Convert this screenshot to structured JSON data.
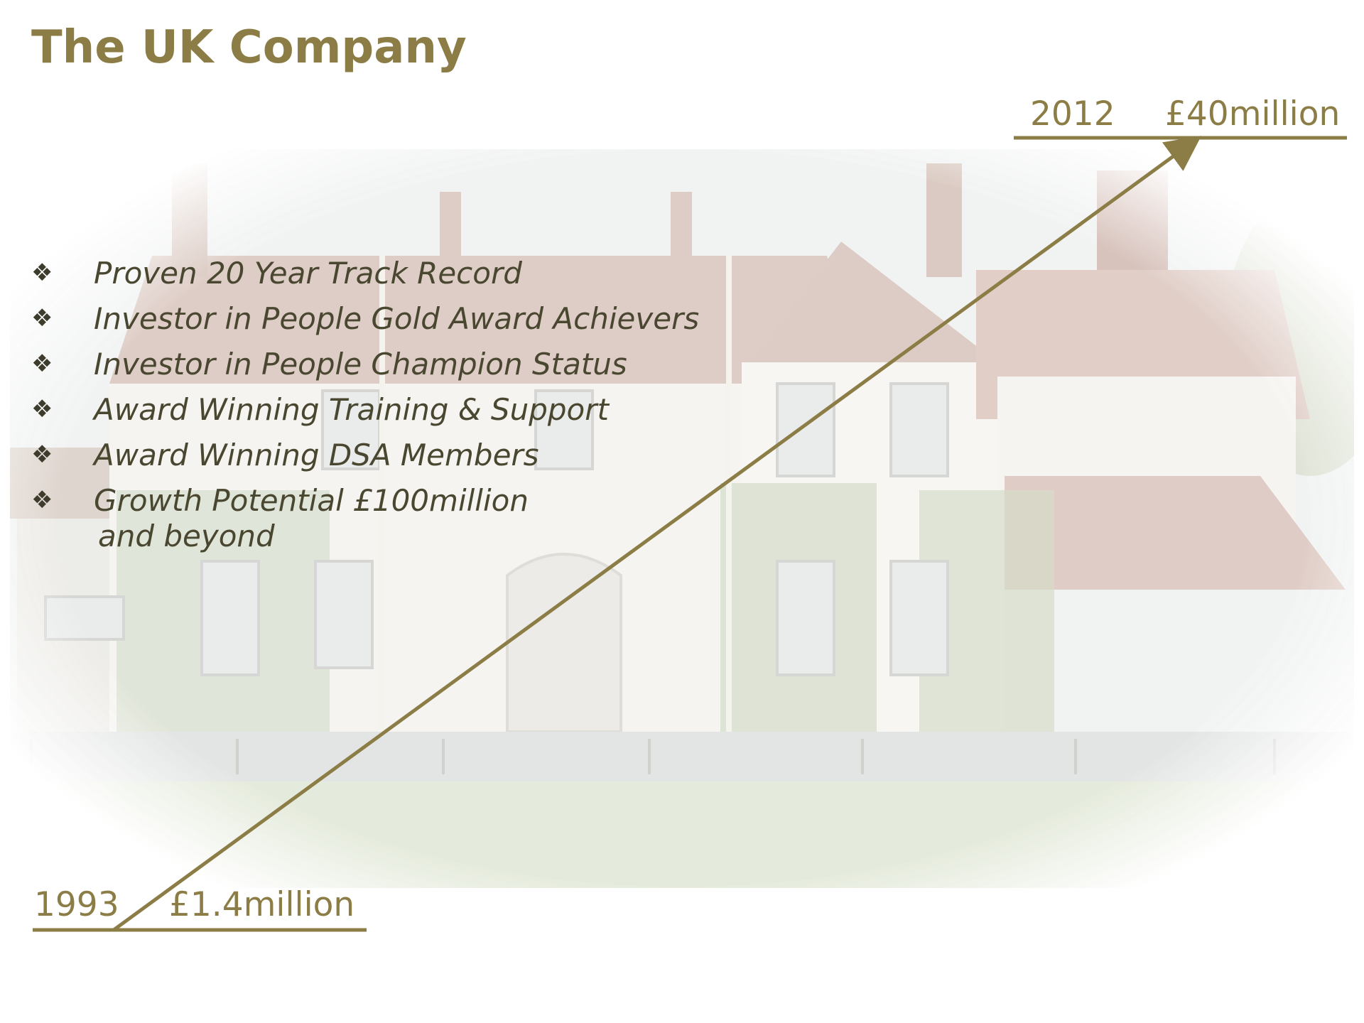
{
  "slide": {
    "title": "The UK Company"
  },
  "bullets": [
    {
      "marker": "❖",
      "text": "Proven 20 Year Track Record"
    },
    {
      "marker": "❖",
      "text": "Investor in People Gold Award Achievers"
    },
    {
      "marker": "❖",
      "text": "Investor in People Champion Status"
    },
    {
      "marker": "❖",
      "text": "Award Winning Training & Support"
    },
    {
      "marker": "❖",
      "text": "Award Winning DSA Members"
    },
    {
      "marker": "❖",
      "text": "Growth Potential £100million",
      "continuation": "and beyond"
    }
  ],
  "growth": {
    "start": {
      "year": "1993",
      "value": "£1.4million"
    },
    "end": {
      "year": "2012",
      "value": "£40million"
    }
  },
  "colors": {
    "accent": "#8b7d45",
    "text": "#4a4731"
  },
  "background_image": "house-photo"
}
